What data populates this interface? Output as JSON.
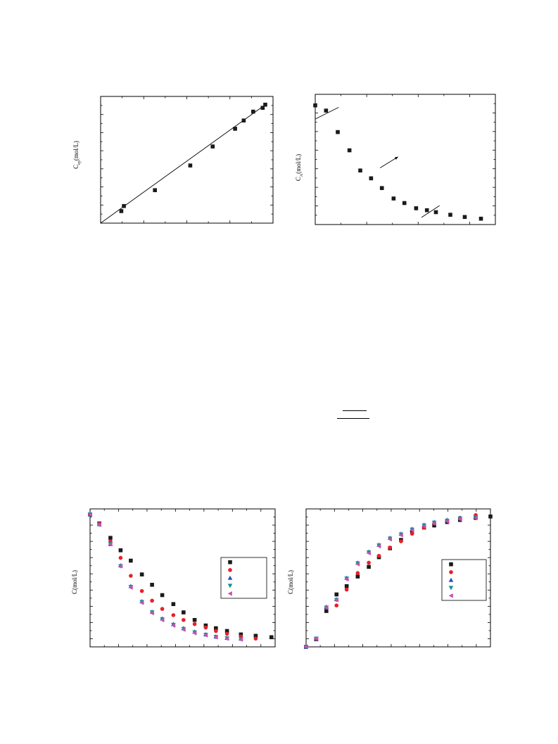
{
  "chart_data": [
    {
      "id": "tl",
      "type": "scatter",
      "ylabel_main": "C",
      "ylabel_sub": "ep",
      "ylabel_unit": "(mol/L)",
      "xlim": [
        0,
        1
      ],
      "ylim": [
        0,
        1
      ],
      "series": [
        {
          "color": "#1a1a1a",
          "marker": "square",
          "x": [
            0.12,
            0.135,
            0.315,
            0.52,
            0.65,
            0.78,
            0.83,
            0.885,
            0.94,
            0.955
          ],
          "y": [
            0.095,
            0.135,
            0.26,
            0.455,
            0.605,
            0.745,
            0.81,
            0.88,
            0.91,
            0.935
          ]
        }
      ],
      "fit_line": {
        "x": [
          0,
          0.955
        ],
        "y": [
          0,
          0.935
        ]
      }
    },
    {
      "id": "tr",
      "type": "scatter",
      "ylabel_main": "C",
      "ylabel_sub": "A",
      "ylabel_unit": "(mol/L)",
      "xlim": [
        0,
        1
      ],
      "ylim": [
        0,
        1
      ],
      "series": [
        {
          "color": "#1a1a1a",
          "marker": "square",
          "x": [
            0.0,
            0.06,
            0.125,
            0.19,
            0.25,
            0.31,
            0.37,
            0.435,
            0.495,
            0.56,
            0.62,
            0.67,
            0.75,
            0.83,
            0.92
          ],
          "y": [
            0.915,
            0.875,
            0.71,
            0.57,
            0.415,
            0.355,
            0.28,
            0.2,
            0.165,
            0.125,
            0.11,
            0.095,
            0.075,
            0.058,
            0.045
          ]
        }
      ],
      "annotations": [
        {
          "x": [
            0.0,
            0.13
          ],
          "y": [
            0.81,
            0.9
          ]
        },
        {
          "x": [
            0.36,
            0.46
          ],
          "y": [
            0.435,
            0.52
          ],
          "arrow": true
        },
        {
          "x": [
            0.59,
            0.69
          ],
          "y": [
            0.055,
            0.145
          ]
        }
      ]
    },
    {
      "id": "bl",
      "type": "scatter",
      "ylabel_main": "C(mol/L)",
      "xlim": [
        0,
        1
      ],
      "ylim": [
        0,
        1
      ],
      "series": [
        {
          "color": "#1a1a1a",
          "marker": "square",
          "x": [
            0.0,
            0.05,
            0.11,
            0.165,
            0.22,
            0.28,
            0.335,
            0.39,
            0.45,
            0.505,
            0.565,
            0.625,
            0.68,
            0.74,
            0.815,
            0.895,
            0.98
          ],
          "y": [
            0.96,
            0.895,
            0.79,
            0.7,
            0.625,
            0.525,
            0.45,
            0.375,
            0.31,
            0.25,
            0.195,
            0.155,
            0.135,
            0.115,
            0.09,
            0.08,
            0.07
          ]
        },
        {
          "color": "#e8202a",
          "marker": "circle",
          "x": [
            0.0,
            0.05,
            0.11,
            0.165,
            0.22,
            0.28,
            0.335,
            0.39,
            0.45,
            0.505,
            0.565,
            0.625,
            0.68,
            0.74,
            0.815,
            0.895
          ],
          "y": [
            0.96,
            0.895,
            0.765,
            0.645,
            0.515,
            0.405,
            0.335,
            0.275,
            0.23,
            0.195,
            0.165,
            0.14,
            0.115,
            0.095,
            0.075,
            0.06
          ]
        },
        {
          "color": "#2a4fb5",
          "marker": "triangle-up",
          "x": [
            0.0,
            0.05,
            0.11,
            0.165,
            0.22,
            0.28,
            0.335,
            0.39,
            0.45,
            0.505,
            0.565,
            0.625,
            0.68,
            0.74,
            0.815
          ],
          "y": [
            0.96,
            0.89,
            0.745,
            0.59,
            0.44,
            0.33,
            0.255,
            0.205,
            0.165,
            0.135,
            0.11,
            0.09,
            0.075,
            0.065,
            0.06
          ]
        },
        {
          "color": "#12938f",
          "marker": "triangle-down",
          "x": [
            0.0,
            0.05,
            0.11,
            0.165,
            0.22,
            0.28,
            0.335,
            0.39,
            0.45,
            0.505,
            0.565,
            0.625,
            0.68,
            0.74,
            0.815
          ],
          "y": [
            0.96,
            0.885,
            0.745,
            0.585,
            0.435,
            0.325,
            0.25,
            0.2,
            0.16,
            0.13,
            0.105,
            0.088,
            0.072,
            0.062,
            0.056
          ]
        },
        {
          "color": "#c84fb0",
          "marker": "triangle-left",
          "x": [
            0.0,
            0.05,
            0.11,
            0.165,
            0.22,
            0.28,
            0.335,
            0.39,
            0.45,
            0.505,
            0.565,
            0.625,
            0.68,
            0.74,
            0.815
          ],
          "y": [
            0.96,
            0.885,
            0.745,
            0.585,
            0.43,
            0.32,
            0.245,
            0.195,
            0.155,
            0.125,
            0.1,
            0.085,
            0.07,
            0.06,
            0.054
          ]
        }
      ],
      "legend_position": "right"
    },
    {
      "id": "br",
      "type": "scatter",
      "ylabel_main": "C(mol/L)",
      "xlim": [
        0,
        1
      ],
      "ylim": [
        0,
        1
      ],
      "series": [
        {
          "color": "#1a1a1a",
          "marker": "square",
          "x": [
            0.0,
            0.055,
            0.11,
            0.165,
            0.22,
            0.28,
            0.34,
            0.395,
            0.455,
            0.515,
            0.575,
            0.64,
            0.695,
            0.765,
            0.835,
            0.92,
            1.0
          ],
          "y": [
            0.0,
            0.055,
            0.26,
            0.38,
            0.44,
            0.51,
            0.58,
            0.65,
            0.715,
            0.775,
            0.83,
            0.865,
            0.88,
            0.905,
            0.92,
            0.935,
            0.945
          ]
        },
        {
          "color": "#e8202a",
          "marker": "circle",
          "x": [
            0.0,
            0.055,
            0.11,
            0.165,
            0.22,
            0.28,
            0.34,
            0.395,
            0.455,
            0.515,
            0.575,
            0.64,
            0.695,
            0.765,
            0.835,
            0.92
          ],
          "y": [
            0.0,
            0.055,
            0.285,
            0.3,
            0.415,
            0.535,
            0.61,
            0.66,
            0.72,
            0.765,
            0.82,
            0.865,
            0.895,
            0.915,
            0.935,
            0.955
          ]
        },
        {
          "color": "#2a4fb5",
          "marker": "triangle-up",
          "x": [
            0.0,
            0.055,
            0.11,
            0.165,
            0.22,
            0.28,
            0.34,
            0.395,
            0.455,
            0.515,
            0.575,
            0.64,
            0.695,
            0.765,
            0.835,
            0.92
          ],
          "y": [
            0.0,
            0.06,
            0.29,
            0.345,
            0.5,
            0.61,
            0.69,
            0.74,
            0.79,
            0.82,
            0.855,
            0.885,
            0.905,
            0.92,
            0.935,
            0.945
          ]
        },
        {
          "color": "#12938f",
          "marker": "triangle-down",
          "x": [
            0.0,
            0.055,
            0.11,
            0.165,
            0.22,
            0.28,
            0.34,
            0.395,
            0.455,
            0.515,
            0.575,
            0.64,
            0.695,
            0.765,
            0.835,
            0.92
          ],
          "y": [
            0.0,
            0.06,
            0.285,
            0.34,
            0.495,
            0.605,
            0.685,
            0.735,
            0.785,
            0.815,
            0.85,
            0.88,
            0.9,
            0.915,
            0.93,
            0.94
          ]
        },
        {
          "color": "#c84fb0",
          "marker": "triangle-left",
          "x": [
            0.0,
            0.055,
            0.11,
            0.165,
            0.22,
            0.28,
            0.34,
            0.395,
            0.455,
            0.515,
            0.575,
            0.64,
            0.695,
            0.765,
            0.835,
            0.92
          ],
          "y": [
            0.0,
            0.06,
            0.285,
            0.34,
            0.49,
            0.6,
            0.68,
            0.73,
            0.78,
            0.81,
            0.845,
            0.875,
            0.895,
            0.91,
            0.925,
            0.935
          ]
        }
      ],
      "legend_position": "right"
    }
  ]
}
